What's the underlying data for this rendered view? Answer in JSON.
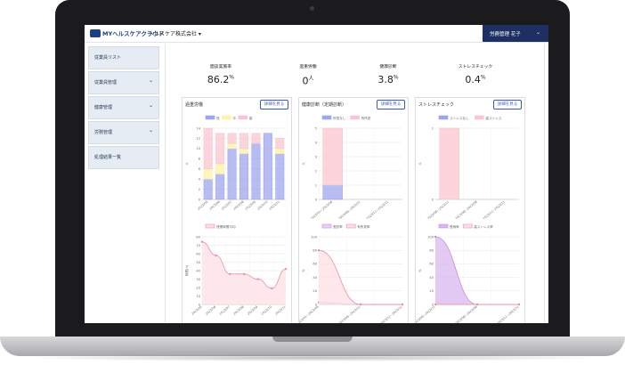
{
  "header": {
    "logo_text": "MYヘルスケアクラウド",
    "company": "ヘルスケア株式会社 ▾",
    "user": "労務管理 花子",
    "caret": "⌄"
  },
  "sidebar": {
    "items": [
      {
        "label": "従業員リスト",
        "caret": ""
      },
      {
        "label": "従業員管理",
        "caret": "⌄"
      },
      {
        "label": "健康管理",
        "caret": "⌄"
      },
      {
        "label": "労務管理",
        "caret": "⌄"
      },
      {
        "label": "処理結果一覧",
        "caret": ""
      }
    ]
  },
  "kpis": [
    {
      "label": "面談実施率",
      "value": "86.2",
      "unit": "%"
    },
    {
      "label": "過重労働",
      "value": "0",
      "unit": "人"
    },
    {
      "label": "健康診断",
      "value": "3.8",
      "unit": "%"
    },
    {
      "label": "ストレスチェック",
      "value": "0.4",
      "unit": "%"
    }
  ],
  "cards": [
    {
      "title": "過重労働",
      "button": "詳細を見る"
    },
    {
      "title": "健康診断（定期診断）",
      "button": "詳細を見る"
    },
    {
      "title": "ストレスチェック",
      "button": "詳細を見る"
    }
  ],
  "chart_data": [
    {
      "type": "bar",
      "stacked": true,
      "categories": [
        "2023/05",
        "2023/06",
        "2023/07",
        "2023/08",
        "2023/09",
        "2023/10",
        "2023/11"
      ],
      "series": [
        {
          "name": "低",
          "color": "#9fa5ef",
          "values": [
            4,
            5,
            10,
            9,
            11,
            13,
            9
          ]
        },
        {
          "name": "中",
          "color": "#fdf2a6",
          "values": [
            2,
            2,
            1,
            1,
            0,
            0,
            1
          ]
        },
        {
          "name": "高",
          "color": "#f9c6d0",
          "values": [
            8,
            6,
            2,
            3,
            2,
            0,
            2
          ]
        }
      ],
      "ylim": [
        0,
        14
      ],
      "yticks": [
        0,
        2,
        4,
        6,
        8,
        10,
        12,
        14
      ],
      "ylabel": "人",
      "legend": "top",
      "grid": true
    },
    {
      "type": "bar",
      "stacked": true,
      "categories": [
        "2023/01~2023/06",
        "2023/06~2023/11",
        "2023/11~2023/11"
      ],
      "series": [
        {
          "name": "所見なし",
          "color": "#9fa5ef",
          "values": [
            1,
            0,
            0
          ]
        },
        {
          "name": "有所見",
          "color": "#f9c6d0",
          "values": [
            4,
            0,
            0
          ]
        }
      ],
      "ylim": [
        0,
        5
      ],
      "yticks": [
        0,
        1,
        2,
        3,
        4,
        5
      ],
      "ylabel": "人",
      "legend": "top",
      "grid": true
    },
    {
      "type": "bar",
      "stacked": true,
      "categories": [
        "2023/06~2023/11",
        "2023/08~2023/08",
        "2023/11~2023/11"
      ],
      "series": [
        {
          "name": "ストレスなし",
          "color": "#9fa5ef",
          "values": [
            0,
            0,
            0
          ]
        },
        {
          "name": "高ストレス",
          "color": "#f9c6d0",
          "values": [
            1,
            0,
            0
          ]
        }
      ],
      "ylim": [
        0,
        1
      ],
      "yticks": [
        0,
        1
      ],
      "ylabel": "人",
      "legend": "top",
      "grid": true
    },
    {
      "type": "area",
      "categories": [
        "2023/05",
        "2023/06",
        "2023/07",
        "2023/08",
        "2023/09",
        "2023/10",
        "2023/11"
      ],
      "series": [
        {
          "name": "残業時間平均",
          "color": "#f08ea0",
          "fill": "#fde0e6",
          "values": [
            74,
            58,
            36,
            36,
            30,
            19,
            42
          ]
        }
      ],
      "ylim": [
        0,
        80
      ],
      "yticks": [
        0,
        10,
        20,
        30,
        40,
        50,
        60,
        70,
        80
      ],
      "ylabel": "時間(h)",
      "legend": "top",
      "grid": true
    },
    {
      "type": "area",
      "categories": [
        "2023/01~2023/06",
        "2023/06~2023/11",
        "2023/11~2023/11"
      ],
      "series": [
        {
          "name": "受診率",
          "color": "#c58ae0",
          "fill": "#e9d3f5",
          "values": [
            3,
            0,
            0
          ]
        },
        {
          "name": "有所見率",
          "color": "#f08ea0",
          "fill": "#fde0e6",
          "values": [
            80,
            0,
            0
          ]
        }
      ],
      "ylim": [
        0,
        100
      ],
      "yticks": [
        0,
        20,
        40,
        60,
        80,
        100
      ],
      "ylabel": "%",
      "legend": "top",
      "grid": true
    },
    {
      "type": "area",
      "categories": [
        "2023/06~2023/11",
        "2023/08~2023/08",
        "2023/11~2023/11"
      ],
      "series": [
        {
          "name": "受検率",
          "color": "#c58ae0",
          "fill": "#d9b8ee",
          "values": [
            100,
            0,
            0
          ]
        },
        {
          "name": "高ストレス率",
          "color": "#f08ea0",
          "fill": "#fde0e6",
          "values": [
            0,
            0,
            0
          ]
        }
      ],
      "ylim": [
        0,
        100
      ],
      "yticks": [
        0,
        20,
        40,
        60,
        80,
        100
      ],
      "ylabel": "%",
      "legend": "top",
      "grid": true
    }
  ]
}
